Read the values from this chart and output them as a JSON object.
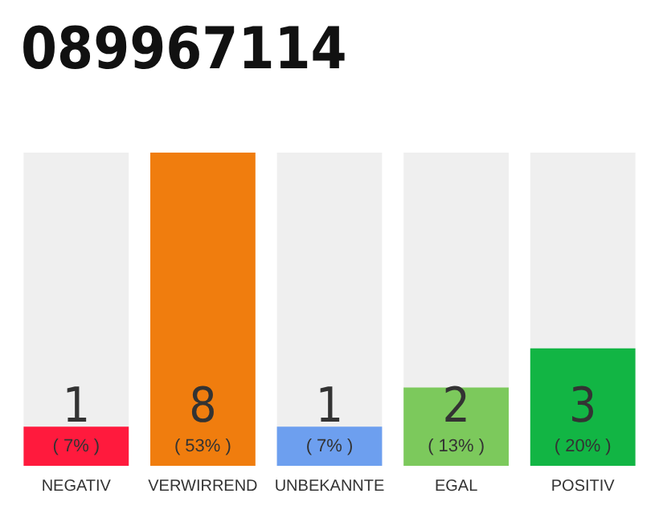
{
  "chart_data": {
    "type": "bar",
    "title": "089967114",
    "categories": [
      "NEGATIV",
      "VERWIRREND",
      "UNBEKANNTE",
      "EGAL",
      "POSITIV"
    ],
    "values": [
      1,
      8,
      1,
      2,
      3
    ],
    "colors": [
      "#ff1a3d",
      "#f07d0e",
      "#6d9fef",
      "#7cc95c",
      "#12b544"
    ],
    "value_labels": [
      "1\n( 7% )",
      "8\n( 53% )",
      "1\n( 7% )",
      "2\n( 13% )",
      "3\n( 20% )"
    ],
    "ylim": [
      0,
      8
    ],
    "tick_labels": "x"
  }
}
